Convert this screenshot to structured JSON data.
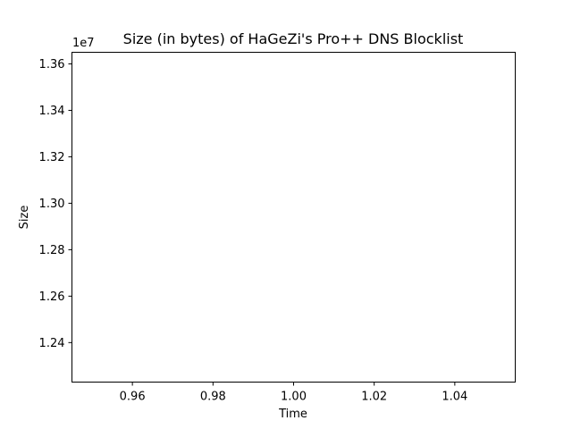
{
  "chart_data": {
    "type": "line",
    "title": "Size (in bytes) of HaGeZi's Pro++ DNS Blocklist",
    "xlabel": "Time",
    "ylabel": "Size",
    "y_offset_label": "1e7",
    "xlim": [
      0.945,
      1.055
    ],
    "ylim": [
      12.23,
      13.65
    ],
    "x_ticks": [
      "0.96",
      "0.98",
      "1.00",
      "1.02",
      "1.04"
    ],
    "x_tick_values": [
      0.96,
      0.98,
      1.0,
      1.02,
      1.04
    ],
    "y_ticks": [
      "1.24",
      "1.26",
      "1.28",
      "1.30",
      "1.32",
      "1.34",
      "1.36"
    ],
    "y_tick_values": [
      12.4,
      12.6,
      12.8,
      13.0,
      13.2,
      13.4,
      13.6
    ],
    "series": [
      {
        "x": [],
        "y": []
      }
    ],
    "grid": false,
    "colors": {
      "axis": "#000000",
      "background": "#ffffff"
    }
  }
}
